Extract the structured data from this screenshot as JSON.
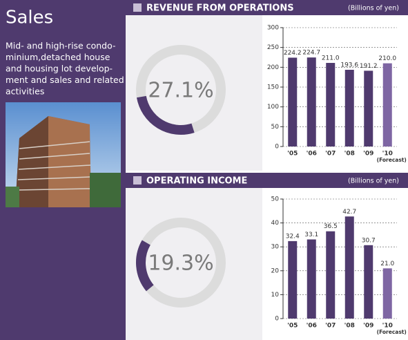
{
  "sidebar": {
    "title": "Sales",
    "description": [
      "Mid- and high-rise condo-",
      "minium,detached house",
      "and housing lot develop-",
      "ment and sales and related",
      "activities"
    ]
  },
  "chart_data": [
    {
      "type": "donut",
      "values": [
        27.1
      ],
      "value_labels": [
        "27.1%"
      ],
      "color": "#4f3a6e"
    },
    {
      "type": "bar",
      "title": "REVENUE FROM OPERATIONS",
      "unit": "(Billions of yen)",
      "categories": [
        "'05",
        "'06",
        "'07",
        "'08",
        "'09",
        "'10"
      ],
      "forecast_label": "(Forecast)",
      "values": [
        224.2,
        224.7,
        211.0,
        193.6,
        191.2,
        210.0
      ],
      "value_labels": [
        "224.2",
        "224.7",
        "211.0",
        "193.6",
        "191.2",
        "210.0"
      ],
      "colors": [
        "#4f3a6e",
        "#4f3a6e",
        "#4f3a6e",
        "#4f3a6e",
        "#4f3a6e",
        "#7e66a3"
      ],
      "ylim": [
        0,
        300
      ],
      "yticks": [
        0,
        50,
        100,
        150,
        200,
        250,
        300
      ],
      "grid": true
    },
    {
      "type": "donut",
      "values": [
        19.3
      ],
      "value_labels": [
        "19.3%"
      ],
      "color": "#4f3a6e"
    },
    {
      "type": "bar",
      "title": "OPERATING INCOME",
      "unit": "(Billions of yen)",
      "categories": [
        "'05",
        "'06",
        "'07",
        "'08",
        "'09",
        "'10"
      ],
      "forecast_label": "(Forecast)",
      "values": [
        32.4,
        33.1,
        36.5,
        42.7,
        30.7,
        21.0
      ],
      "value_labels": [
        "32.4",
        "33.1",
        "36.5",
        "42.7",
        "30.7",
        "21.0"
      ],
      "colors": [
        "#4f3a6e",
        "#4f3a6e",
        "#4f3a6e",
        "#4f3a6e",
        "#4f3a6e",
        "#7e66a3"
      ],
      "ylim": [
        0,
        50
      ],
      "yticks": [
        0,
        10,
        20,
        30,
        40,
        50
      ],
      "grid": true
    }
  ]
}
